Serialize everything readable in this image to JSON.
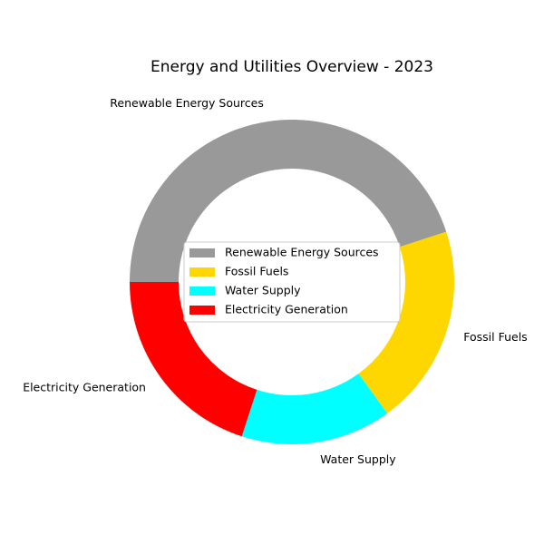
{
  "chart_data": {
    "type": "pie",
    "variant": "donut",
    "title": "Energy and Utilities Overview - 2023",
    "categories": [
      "Renewable Energy Sources",
      "Fossil Fuels",
      "Water Supply",
      "Electricity Generation"
    ],
    "values": [
      45,
      20,
      15,
      20
    ],
    "colors": [
      "#999999",
      "#ffd700",
      "#00ffff",
      "#ff0000"
    ],
    "start_angle_deg": 180,
    "direction": "clockwise",
    "legend": {
      "placement": "center",
      "entries": [
        "Renewable Energy Sources",
        "Fossil Fuels",
        "Water Supply",
        "Electricity Generation"
      ]
    }
  }
}
